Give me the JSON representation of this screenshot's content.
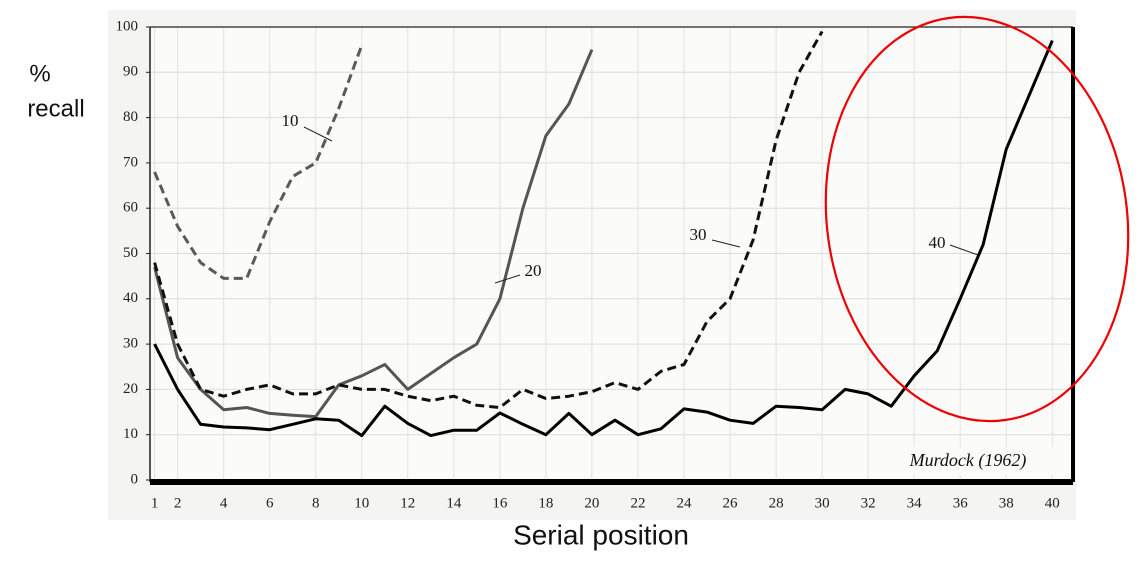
{
  "chart_data": {
    "type": "line",
    "xlabel": "Serial position",
    "ylabel": [
      "%",
      "recall"
    ],
    "annotation": "Murdock (1962)",
    "x": [
      1,
      2,
      3,
      4,
      5,
      6,
      7,
      8,
      9,
      10,
      11,
      12,
      13,
      14,
      15,
      16,
      17,
      18,
      19,
      20,
      21,
      22,
      23,
      24,
      25,
      26,
      27,
      28,
      29,
      30,
      31,
      32,
      33,
      34,
      35,
      36,
      37,
      38,
      39,
      40
    ],
    "series": [
      {
        "name": "10",
        "color": "#5a5a5a",
        "dashed": true,
        "values": [
          68,
          56,
          48,
          44.5,
          44.5,
          57,
          67,
          70,
          82,
          96,
          null,
          null,
          null,
          null,
          null,
          null,
          null,
          null,
          null,
          null,
          null,
          null,
          null,
          null,
          null,
          null,
          null,
          null,
          null,
          null,
          null,
          null,
          null,
          null,
          null,
          null,
          null,
          null,
          null,
          null
        ]
      },
      {
        "name": "20",
        "color": "#555555",
        "dashed": false,
        "values": [
          47,
          27,
          20,
          15.5,
          16,
          14.7,
          14.3,
          14,
          21,
          23,
          25.5,
          20,
          23.5,
          27,
          30,
          40,
          60,
          76,
          83,
          95,
          null,
          null,
          null,
          null,
          null,
          null,
          null,
          null,
          null,
          null,
          null,
          null,
          null,
          null,
          null,
          null,
          null,
          null,
          null,
          null
        ]
      },
      {
        "name": "30",
        "color": "#111111",
        "dashed": true,
        "values": [
          48,
          30,
          20,
          18.5,
          20,
          21,
          19,
          19,
          21,
          20,
          20,
          18.5,
          17.5,
          18.5,
          16.5,
          16,
          20,
          18,
          18.5,
          19.5,
          21.5,
          20,
          24,
          25.5,
          35,
          40,
          53,
          75,
          90,
          99,
          null,
          null,
          null,
          null,
          null,
          null,
          null,
          null,
          null,
          null
        ]
      },
      {
        "name": "40",
        "color": "#000000",
        "dashed": false,
        "values": [
          30,
          20,
          12.3,
          11.7,
          11.5,
          11.1,
          12.3,
          13.5,
          13.2,
          9.8,
          16.3,
          12.5,
          9.8,
          11,
          11,
          14.8,
          12.3,
          10,
          14.7,
          10,
          13.2,
          10,
          11.3,
          15.7,
          15,
          13.2,
          12.5,
          16.3,
          16,
          15.5,
          20,
          19,
          16.3,
          23,
          28.5,
          40,
          52,
          73,
          85,
          97
        ]
      }
    ],
    "xlim": [
      0.8,
      40.9
    ],
    "ylim": [
      0,
      100
    ],
    "xticks": [
      1,
      2,
      4,
      6,
      8,
      10,
      12,
      14,
      16,
      18,
      20,
      22,
      24,
      26,
      28,
      30,
      32,
      34,
      36,
      38,
      40
    ],
    "yticks": [
      0,
      10,
      20,
      30,
      40,
      50,
      60,
      70,
      80,
      90,
      100
    ],
    "grid": true
  }
}
